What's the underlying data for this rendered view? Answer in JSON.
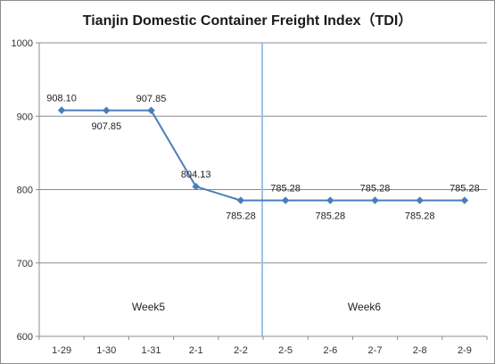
{
  "chart_data": {
    "type": "line",
    "title": "Tianjin  Domestic Container Freight Index（TDI）",
    "xlabel": "",
    "ylabel": "",
    "categories": [
      "1-29",
      "1-30",
      "1-31",
      "2-1",
      "2-2",
      "2-5",
      "2-6",
      "2-7",
      "2-8",
      "2-9"
    ],
    "series": [
      {
        "values": [
          908.1,
          907.85,
          907.85,
          804.13,
          785.28,
          785.28,
          785.28,
          785.28,
          785.28,
          785.28
        ],
        "data_labels": [
          "908.10",
          "907.85",
          "907.85",
          "804.13",
          "785.28",
          "785.28",
          "785.28",
          "785.28",
          "785.28",
          "785.28"
        ],
        "color": "#4a7ebb"
      }
    ],
    "ylim": [
      600,
      1000
    ],
    "yticks": [
      600,
      700,
      800,
      900,
      1000
    ],
    "grid": true,
    "legend": "none",
    "annotations": [
      "Week5",
      "Week6"
    ],
    "divider_color": "#9dc3e6"
  }
}
